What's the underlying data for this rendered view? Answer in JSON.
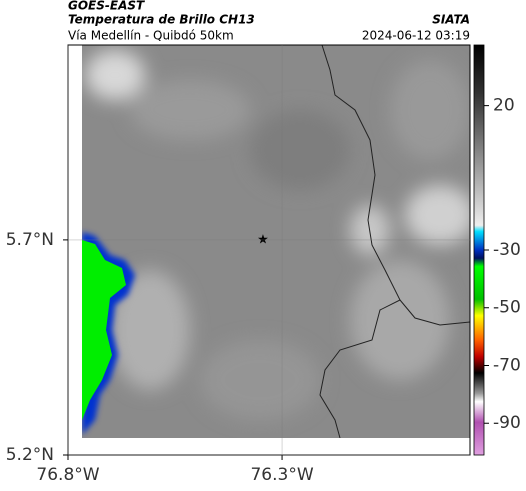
{
  "header": {
    "title": "GOES-EAST",
    "subtitle": "Temperatura de Brillo CH13",
    "source": "SIATA",
    "route": "Vía Medellín - Quibdó 50km",
    "datetime": "2024-06-12 03:19"
  },
  "map": {
    "xlim": [
      -76.8,
      -75.861
    ],
    "ylim": [
      5.2,
      6.153
    ],
    "xticks": [
      {
        "value": -76.8,
        "label": "76.8°W"
      },
      {
        "value": -76.3,
        "label": "76.3°W"
      }
    ],
    "yticks": [
      {
        "value": 5.7,
        "label": "5.7°N"
      },
      {
        "value": 5.2,
        "label": "5.2°N"
      }
    ]
  },
  "colorbar": {
    "lim": [
      -101,
      41
    ],
    "ticks": [
      20,
      -30,
      -50,
      -70,
      -90
    ]
  }
}
